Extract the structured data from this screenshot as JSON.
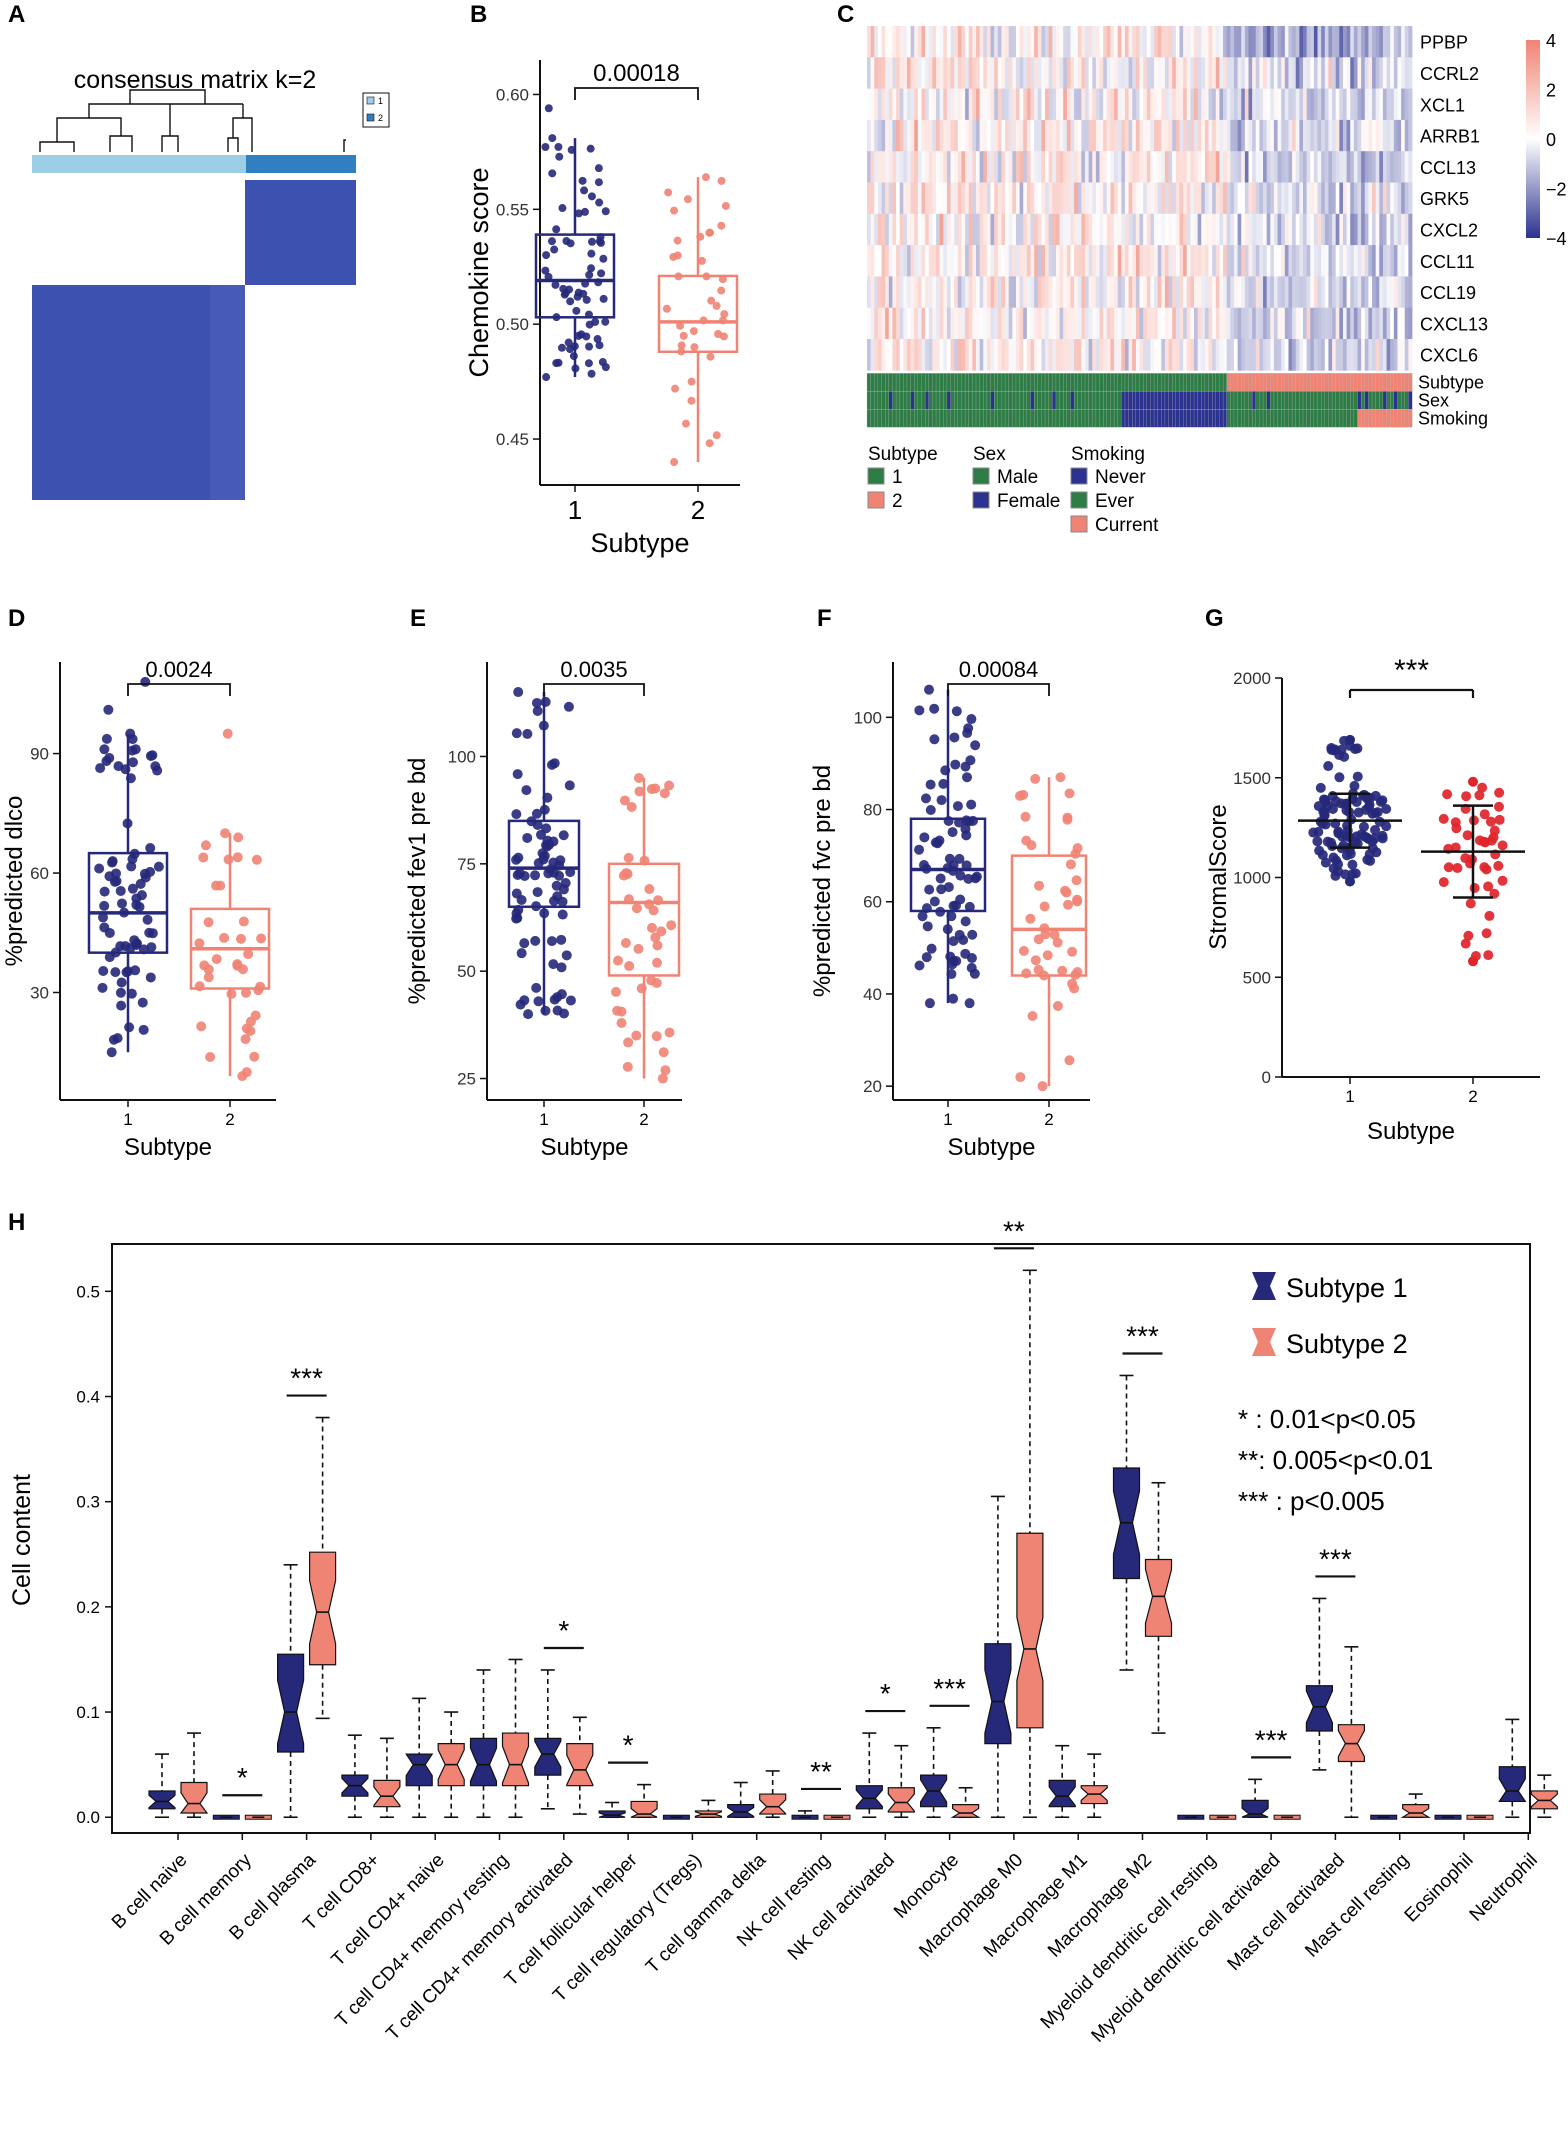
{
  "colors": {
    "s1": "#26287a",
    "s2": "#f08474",
    "s2red": "#e0242a",
    "hm_low": "#2b3290",
    "hm_high": "#f08474",
    "green": "#2e7d46",
    "lightblue": "#9ccfe6",
    "blue": "#2f7fc1",
    "matrix": "#3d51b0"
  },
  "panels": {
    "A": {
      "letter": "A",
      "title": "consensus matrix k=2",
      "legend": [
        "1",
        "2"
      ]
    },
    "B": {
      "letter": "B",
      "chart_data": {
        "type": "box",
        "xlabel": "Subtype",
        "ylabel": "Chemokine score",
        "categories": [
          "1",
          "2"
        ],
        "yticks": [
          "0.45",
          "0.50",
          "0.55",
          "0.60"
        ],
        "ylim": [
          0.43,
          0.615
        ],
        "pvalue": "0.00018",
        "boxes": [
          {
            "q1": 0.503,
            "median": 0.519,
            "q3": 0.539,
            "wmin": 0.477,
            "wmax": 0.581
          },
          {
            "q1": 0.488,
            "median": 0.501,
            "q3": 0.521,
            "wmin": 0.44,
            "wmax": 0.564
          }
        ],
        "outliers": [
          [
            0.594
          ],
          []
        ]
      }
    },
    "C": {
      "letter": "C",
      "genes": [
        "PPBP",
        "CCRL2",
        "XCL1",
        "ARRB1",
        "CCL13",
        "GRK5",
        "CXCL2",
        "CCL11",
        "CCL19",
        "CXCL13",
        "CXCL6"
      ],
      "annotation_rows": [
        "Subtype",
        "Sex",
        "Smoking"
      ],
      "colorbar_ticks": [
        "4",
        "2",
        "0",
        "−2",
        "−4"
      ],
      "legend": {
        "subtype": {
          "title": "Subtype",
          "items": [
            "1",
            "2"
          ]
        },
        "sex": {
          "title": "Sex",
          "items": [
            "Male",
            "Female"
          ]
        },
        "smoking": {
          "title": "Smoking",
          "items": [
            "Never",
            "Ever",
            "Current"
          ]
        }
      }
    },
    "D": {
      "letter": "D",
      "chart_data": {
        "type": "box",
        "xlabel": "Subtype",
        "ylabel": "%predicted dlco",
        "categories": [
          "1",
          "2"
        ],
        "yticks": [
          "30",
          "60",
          "90"
        ],
        "ylim": [
          3,
          113
        ],
        "pvalue": "0.0024",
        "boxes": [
          {
            "q1": 40,
            "median": 50,
            "q3": 65,
            "wmin": 15,
            "wmax": 95
          },
          {
            "q1": 31,
            "median": 41,
            "q3": 51,
            "wmin": 9,
            "wmax": 70
          }
        ],
        "outliers": [
          [
            108,
            101
          ],
          [
            95
          ]
        ]
      }
    },
    "E": {
      "letter": "E",
      "chart_data": {
        "type": "box",
        "xlabel": "Subtype",
        "ylabel": "%predicted fev1 pre bd",
        "categories": [
          "1",
          "2"
        ],
        "yticks": [
          "25",
          "50",
          "75",
          "100"
        ],
        "ylim": [
          20,
          122
        ],
        "pvalue": "0.0035",
        "boxes": [
          {
            "q1": 65,
            "median": 74,
            "q3": 85,
            "wmin": 40,
            "wmax": 115
          },
          {
            "q1": 49,
            "median": 66,
            "q3": 75,
            "wmin": 25,
            "wmax": 95
          }
        ],
        "outliers": [
          [],
          []
        ]
      }
    },
    "F": {
      "letter": "F",
      "chart_data": {
        "type": "box",
        "xlabel": "Subtype",
        "ylabel": "%predicted fvc pre bd",
        "categories": [
          "1",
          "2"
        ],
        "yticks": [
          "20",
          "40",
          "60",
          "80",
          "100"
        ],
        "ylim": [
          17,
          112
        ],
        "pvalue": "0.00084",
        "boxes": [
          {
            "q1": 58,
            "median": 67,
            "q3": 78,
            "wmin": 38,
            "wmax": 106
          },
          {
            "q1": 44,
            "median": 54,
            "q3": 70,
            "wmin": 20,
            "wmax": 87
          }
        ],
        "outliers": [
          [],
          []
        ]
      }
    },
    "G": {
      "letter": "G",
      "chart_data": {
        "type": "scatter",
        "xlabel": "Subtype",
        "ylabel": "StromalScore",
        "categories": [
          "1",
          "2"
        ],
        "yticks": [
          "0",
          "500",
          "1000",
          "1500",
          "2000"
        ],
        "ylim": [
          0,
          2000
        ],
        "significance": "***",
        "summary": [
          {
            "mean": 1285,
            "sd_low": 1150,
            "sd_high": 1420,
            "min": 980,
            "max": 1690
          },
          {
            "mean": 1130,
            "sd_low": 900,
            "sd_high": 1360,
            "min": 580,
            "max": 1480
          }
        ]
      }
    },
    "H": {
      "letter": "H",
      "chart_data": {
        "type": "box",
        "ylabel": "Cell content",
        "yticks": [
          "0.0",
          "0.1",
          "0.2",
          "0.3",
          "0.4",
          "0.5"
        ],
        "ylim": [
          -0.015,
          0.545
        ],
        "legend": [
          "Subtype 1",
          "Subtype 2"
        ],
        "notes": [
          "* : 0.01<p<0.05",
          "**: 0.005<p<0.01",
          "*** : p<0.005"
        ],
        "categories": [
          "B cell naive",
          "B cell memory",
          "B cell plasma",
          "T cell CD8+",
          "T cell CD4+ naive",
          "T cell CD4+ memory resting",
          "T cell CD4+ memory activated",
          "T cell follicular helper",
          "T cell regulatory (Tregs)",
          "T cell gamma delta",
          "NK cell resting",
          "NK cell activated",
          "Monocyte",
          "Macrophage M0",
          "Macrophage M1",
          "Macrophage M2",
          "Myeloid dendritic cell resting",
          "Myeloid dendritic cell activated",
          "Mast cell activated",
          "Mast cell resting",
          "Eosinophil",
          "Neutrophil"
        ],
        "significance": [
          "",
          "*",
          "***",
          "",
          "",
          "",
          "*",
          "*",
          "",
          "",
          "**",
          "*",
          "***",
          "**",
          "",
          "***",
          "",
          "***",
          "***",
          "",
          "",
          ""
        ],
        "series": [
          {
            "name": "Subtype 1",
            "boxes": [
              [
                0.0,
                0.008,
                0.015,
                0.025,
                0.06
              ],
              [
                0.0,
                0.0,
                0.0,
                0.0,
                0.0
              ],
              [
                0.0,
                0.062,
                0.1,
                0.155,
                0.24
              ],
              [
                0.0,
                0.02,
                0.03,
                0.04,
                0.078
              ],
              [
                0.0,
                0.03,
                0.05,
                0.06,
                0.113
              ],
              [
                0.0,
                0.03,
                0.05,
                0.075,
                0.14
              ],
              [
                0.008,
                0.04,
                0.06,
                0.075,
                0.14
              ],
              [
                0.0,
                0.0,
                0.002,
                0.006,
                0.014
              ],
              [
                0.0,
                0.0,
                0.0,
                0.0,
                0.0
              ],
              [
                0.0,
                0.0,
                0.005,
                0.012,
                0.033
              ],
              [
                0.0,
                0.0,
                0.0,
                0.003,
                0.006
              ],
              [
                0.0,
                0.008,
                0.018,
                0.03,
                0.08
              ],
              [
                0.0,
                0.01,
                0.025,
                0.04,
                0.085
              ],
              [
                0.0,
                0.07,
                0.11,
                0.165,
                0.305
              ],
              [
                0.0,
                0.01,
                0.02,
                0.035,
                0.068
              ],
              [
                0.14,
                0.227,
                0.28,
                0.332,
                0.42
              ],
              [
                0.0,
                0.0,
                0.0,
                0.0,
                0.0
              ],
              [
                0.0,
                0.0,
                0.003,
                0.016,
                0.036
              ],
              [
                0.045,
                0.082,
                0.105,
                0.125,
                0.208
              ],
              [
                0.0,
                0.0,
                0.0,
                0.0,
                0.0
              ],
              [
                0.0,
                0.0,
                0.0,
                0.0,
                0.0
              ],
              [
                0.0,
                0.015,
                0.025,
                0.048,
                0.093
              ]
            ]
          },
          {
            "name": "Subtype 2",
            "boxes": [
              [
                0.0,
                0.004,
                0.013,
                0.033,
                0.08
              ],
              [
                0.0,
                0.0,
                0.0,
                0.0,
                0.0
              ],
              [
                0.094,
                0.145,
                0.195,
                0.252,
                0.38
              ],
              [
                0.0,
                0.01,
                0.02,
                0.035,
                0.075
              ],
              [
                0.0,
                0.03,
                0.05,
                0.07,
                0.1
              ],
              [
                0.0,
                0.03,
                0.05,
                0.08,
                0.15
              ],
              [
                0.003,
                0.03,
                0.045,
                0.07,
                0.095
              ],
              [
                0.0,
                0.0,
                0.003,
                0.015,
                0.031
              ],
              [
                0.0,
                0.0,
                0.003,
                0.006,
                0.016
              ],
              [
                0.0,
                0.003,
                0.01,
                0.022,
                0.044
              ],
              [
                0.0,
                0.0,
                0.0,
                0.0,
                0.0
              ],
              [
                0.0,
                0.005,
                0.014,
                0.028,
                0.068
              ],
              [
                0.0,
                0.0,
                0.004,
                0.012,
                0.028
              ],
              [
                0.0,
                0.085,
                0.16,
                0.27,
                0.52
              ],
              [
                0.0,
                0.013,
                0.022,
                0.03,
                0.06
              ],
              [
                0.08,
                0.172,
                0.21,
                0.245,
                0.318
              ],
              [
                0.0,
                0.0,
                0.0,
                0.0,
                0.0
              ],
              [
                0.0,
                0.0,
                0.0,
                0.0,
                0.0
              ],
              [
                0.0,
                0.053,
                0.07,
                0.088,
                0.162
              ],
              [
                0.0,
                0.0,
                0.004,
                0.012,
                0.022
              ],
              [
                0.0,
                0.0,
                0.0,
                0.0,
                0.0
              ],
              [
                0.0,
                0.008,
                0.016,
                0.025,
                0.04
              ]
            ]
          }
        ]
      }
    }
  }
}
